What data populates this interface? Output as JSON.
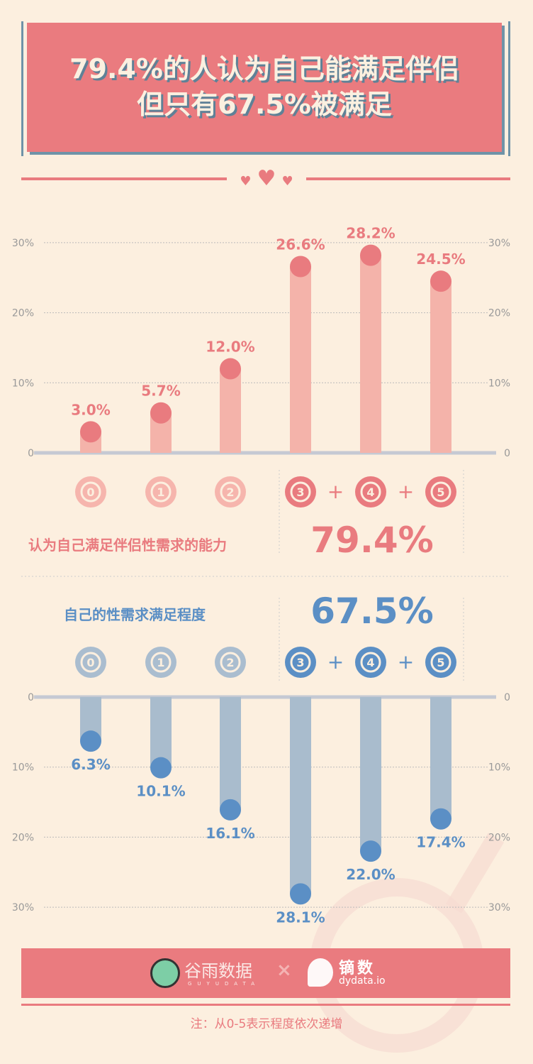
{
  "title": {
    "line1": "79.4%的人认为自己能满足伴侣",
    "line2": "但只有67.5%被满足"
  },
  "decor": {
    "hearts": [
      "♥",
      "♥",
      "♥"
    ]
  },
  "colors": {
    "pink": "#e97b7f",
    "pink_bar": "#f4b3aa",
    "pink_light": "#f6b5ad",
    "blue": "#5b8fc5",
    "blue_bar": "#a9bccd",
    "blue_light": "#aabdcf",
    "axis": "#c5c9d3",
    "bg": "#fcefdf"
  },
  "chart_data": [
    {
      "type": "bar",
      "title": "认为自己满足伴侣性需求的能力",
      "categories": [
        "0",
        "1",
        "2",
        "3",
        "4",
        "5"
      ],
      "values": [
        3.0,
        5.7,
        12.0,
        26.6,
        28.2,
        24.5
      ],
      "value_labels": [
        "3.0%",
        "5.7%",
        "12.0%",
        "26.6%",
        "28.2%",
        "24.5%"
      ],
      "yticks": [
        "0",
        "10%",
        "20%",
        "30%"
      ],
      "ylim": [
        0,
        30
      ],
      "direction": "up",
      "summary": "79.4%",
      "highlight": [
        "3",
        "4",
        "5"
      ]
    },
    {
      "type": "bar",
      "title": "自己的性需求满足程度",
      "categories": [
        "0",
        "1",
        "2",
        "3",
        "4",
        "5"
      ],
      "values": [
        6.3,
        10.1,
        16.1,
        28.1,
        22.0,
        17.4
      ],
      "value_labels": [
        "6.3%",
        "10.1%",
        "16.1%",
        "28.1%",
        "22.0%",
        "17.4%"
      ],
      "yticks": [
        "0",
        "10%",
        "20%",
        "30%"
      ],
      "ylim": [
        0,
        30
      ],
      "direction": "down",
      "summary": "67.5%",
      "highlight": [
        "3",
        "4",
        "5"
      ]
    }
  ],
  "plus": "+",
  "footer": {
    "brand1": "谷雨数据",
    "brand1_sub": "GUYUDATA",
    "cross": "×",
    "brand2": "镝数",
    "brand2_sub": "dydata.io",
    "note": "注：从0-5表示程度依次递增"
  }
}
